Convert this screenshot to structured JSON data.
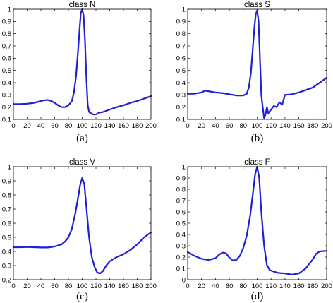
{
  "chart_data": [
    {
      "type": "line",
      "title": "class N",
      "caption": "(a)",
      "xlim": [
        0,
        200
      ],
      "ylim": [
        0.1,
        1
      ],
      "xticks": [
        0,
        20,
        40,
        60,
        80,
        100,
        120,
        140,
        160,
        180,
        200
      ],
      "yticks": [
        0.1,
        0.2,
        0.3,
        0.4,
        0.5,
        0.6,
        0.7,
        0.8,
        0.9,
        1
      ],
      "series": [
        {
          "x": [
            0,
            10,
            20,
            30,
            40,
            45,
            50,
            55,
            60,
            65,
            70,
            75,
            80,
            85,
            88,
            91,
            94,
            96,
            98,
            100,
            102,
            104,
            106,
            108,
            110,
            113,
            116,
            120,
            125,
            130,
            140,
            150,
            160,
            170,
            180,
            190,
            200
          ],
          "y": [
            0.225,
            0.225,
            0.228,
            0.235,
            0.25,
            0.257,
            0.258,
            0.25,
            0.235,
            0.215,
            0.2,
            0.2,
            0.215,
            0.25,
            0.32,
            0.45,
            0.66,
            0.82,
            0.97,
            1.0,
            0.95,
            0.75,
            0.45,
            0.22,
            0.16,
            0.15,
            0.14,
            0.14,
            0.155,
            0.16,
            0.18,
            0.2,
            0.215,
            0.235,
            0.25,
            0.27,
            0.29
          ]
        }
      ]
    },
    {
      "type": "line",
      "title": "class S",
      "caption": "(b)",
      "xlim": [
        0,
        200
      ],
      "ylim": [
        0.1,
        1
      ],
      "xticks": [
        0,
        20,
        40,
        60,
        80,
        100,
        120,
        140,
        160,
        180,
        200
      ],
      "yticks": [
        0.1,
        0.2,
        0.3,
        0.4,
        0.5,
        0.6,
        0.7,
        0.8,
        0.9,
        1
      ],
      "series": [
        {
          "x": [
            0,
            10,
            20,
            25,
            30,
            40,
            50,
            60,
            70,
            80,
            85,
            88,
            91,
            94,
            96,
            98,
            100,
            102,
            104,
            106,
            108,
            110,
            112,
            114,
            116,
            120,
            124,
            128,
            132,
            136,
            140,
            150,
            160,
            170,
            180,
            190,
            200
          ],
          "y": [
            0.31,
            0.31,
            0.32,
            0.335,
            0.33,
            0.32,
            0.315,
            0.305,
            0.295,
            0.295,
            0.31,
            0.36,
            0.48,
            0.7,
            0.85,
            0.96,
            0.99,
            0.9,
            0.6,
            0.3,
            0.2,
            0.11,
            0.14,
            0.2,
            0.15,
            0.18,
            0.21,
            0.2,
            0.24,
            0.22,
            0.3,
            0.305,
            0.32,
            0.34,
            0.36,
            0.4,
            0.44
          ]
        }
      ]
    },
    {
      "type": "line",
      "title": "class V",
      "caption": "(c)",
      "xlim": [
        0,
        200
      ],
      "ylim": [
        0.2,
        1
      ],
      "xticks": [
        0,
        20,
        40,
        60,
        80,
        100,
        120,
        140,
        160,
        180,
        200
      ],
      "yticks": [
        0.2,
        0.3,
        0.4,
        0.5,
        0.6,
        0.7,
        0.8,
        0.9,
        1
      ],
      "series": [
        {
          "x": [
            0,
            10,
            20,
            30,
            40,
            50,
            60,
            70,
            75,
            80,
            85,
            90,
            94,
            97,
            100,
            103,
            106,
            110,
            114,
            118,
            122,
            126,
            130,
            135,
            140,
            150,
            160,
            170,
            180,
            190,
            200
          ],
          "y": [
            0.43,
            0.43,
            0.432,
            0.43,
            0.428,
            0.428,
            0.435,
            0.45,
            0.47,
            0.5,
            0.56,
            0.67,
            0.78,
            0.87,
            0.92,
            0.88,
            0.72,
            0.5,
            0.36,
            0.29,
            0.25,
            0.245,
            0.26,
            0.3,
            0.33,
            0.36,
            0.38,
            0.41,
            0.45,
            0.5,
            0.535
          ]
        }
      ]
    },
    {
      "type": "line",
      "title": "class F",
      "caption": "(d)",
      "xlim": [
        0,
        200
      ],
      "ylim": [
        0,
        1
      ],
      "xticks": [
        0,
        20,
        40,
        60,
        80,
        100,
        120,
        140,
        160,
        180,
        200
      ],
      "yticks": [
        0,
        0.1,
        0.2,
        0.3,
        0.4,
        0.5,
        0.6,
        0.7,
        0.8,
        0.9,
        1
      ],
      "series": [
        {
          "x": [
            0,
            10,
            20,
            30,
            40,
            45,
            50,
            55,
            60,
            65,
            70,
            75,
            80,
            85,
            90,
            94,
            97,
            100,
            103,
            106,
            110,
            114,
            118,
            125,
            130,
            140,
            150,
            160,
            170,
            180,
            185,
            190,
            200
          ],
          "y": [
            0.245,
            0.21,
            0.185,
            0.175,
            0.19,
            0.22,
            0.24,
            0.235,
            0.195,
            0.17,
            0.175,
            0.21,
            0.28,
            0.39,
            0.57,
            0.77,
            0.93,
            1.0,
            0.9,
            0.6,
            0.3,
            0.13,
            0.085,
            0.07,
            0.06,
            0.055,
            0.045,
            0.055,
            0.1,
            0.18,
            0.23,
            0.25,
            0.255
          ]
        }
      ]
    }
  ]
}
